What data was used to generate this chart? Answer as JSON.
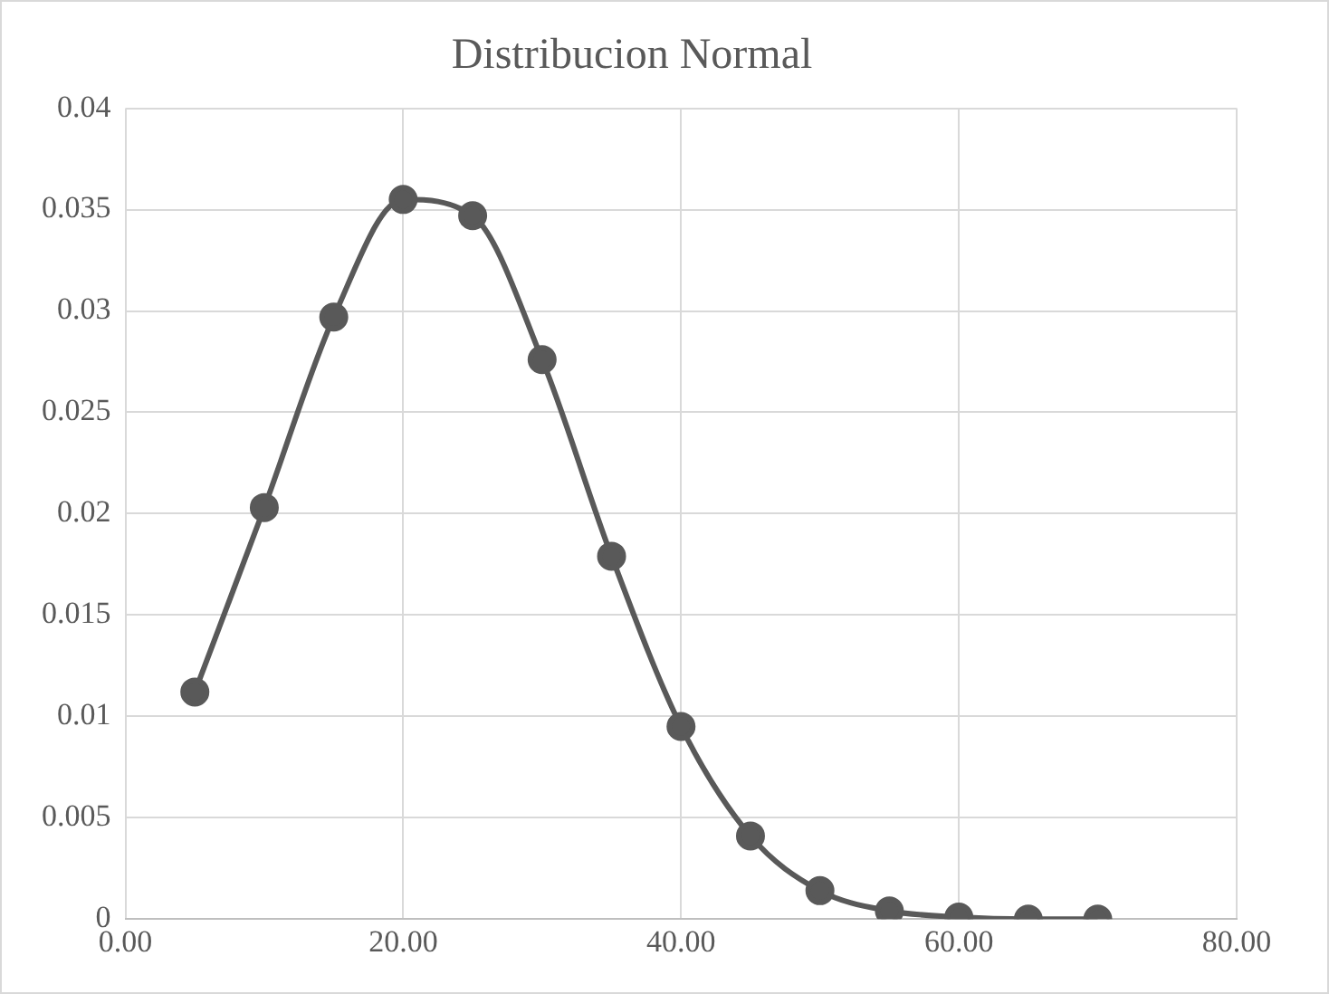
{
  "chart_data": {
    "type": "line",
    "title": "Distribucion Normal",
    "x": [
      5,
      10,
      15,
      20,
      25,
      30,
      35,
      40,
      45,
      50,
      55,
      60,
      65,
      70
    ],
    "series": [
      {
        "color": "#595959",
        "values": [
          0.0112,
          0.0203,
          0.0297,
          0.0355,
          0.0347,
          0.0276,
          0.0179,
          0.0095,
          0.0041,
          0.0014,
          0.0004,
          0.0001,
          0.0,
          0.0
        ]
      }
    ],
    "xlim": [
      0,
      80
    ],
    "xticks": [
      {
        "value": 0,
        "label": "0.00"
      },
      {
        "value": 20,
        "label": "20.00"
      },
      {
        "value": 40,
        "label": "40.00"
      },
      {
        "value": 60,
        "label": "60.00"
      },
      {
        "value": 80,
        "label": "80.00"
      }
    ],
    "ylim": [
      0,
      0.04
    ],
    "yticks": [
      0,
      0.005,
      0.01,
      0.015,
      0.02,
      0.025,
      0.03,
      0.035,
      0.04
    ],
    "grid": true,
    "marker": "circle",
    "line_style": "solid",
    "legend": false
  }
}
